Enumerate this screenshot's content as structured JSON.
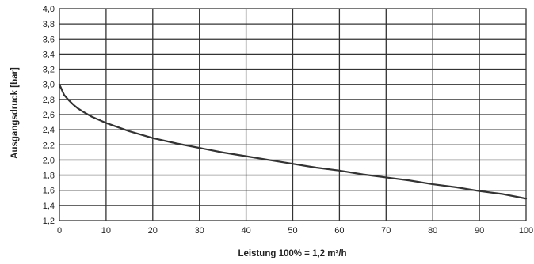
{
  "chart_data": {
    "type": "line",
    "title": "",
    "xlabel": "Leistung 100% = 1,2 m³/h",
    "ylabel": "Ausgangsdruck [bar]",
    "xlim": [
      0,
      100
    ],
    "ylim": [
      1.2,
      4.0
    ],
    "grid": true,
    "x_ticks": [
      "0",
      "10",
      "20",
      "30",
      "40",
      "50",
      "60",
      "70",
      "80",
      "90",
      "100"
    ],
    "y_ticks": [
      "1,2",
      "1,4",
      "1,6",
      "1,8",
      "2,0",
      "2,2",
      "2,4",
      "2,6",
      "2,8",
      "3,0",
      "3,2",
      "3,4",
      "3,6",
      "3,8",
      "4,0"
    ],
    "series": [
      {
        "x": [
          0,
          0.5,
          1,
          2,
          3,
          4,
          5,
          7,
          10,
          15,
          20,
          25,
          30,
          35,
          40,
          45,
          50,
          55,
          60,
          65,
          70,
          75,
          80,
          85,
          90,
          95,
          100
        ],
        "y": [
          3.0,
          2.93,
          2.86,
          2.79,
          2.73,
          2.68,
          2.64,
          2.57,
          2.49,
          2.38,
          2.29,
          2.22,
          2.16,
          2.1,
          2.05,
          2.0,
          1.95,
          1.9,
          1.86,
          1.81,
          1.77,
          1.73,
          1.68,
          1.64,
          1.59,
          1.55,
          1.49
        ],
        "color": "#333333"
      }
    ]
  }
}
